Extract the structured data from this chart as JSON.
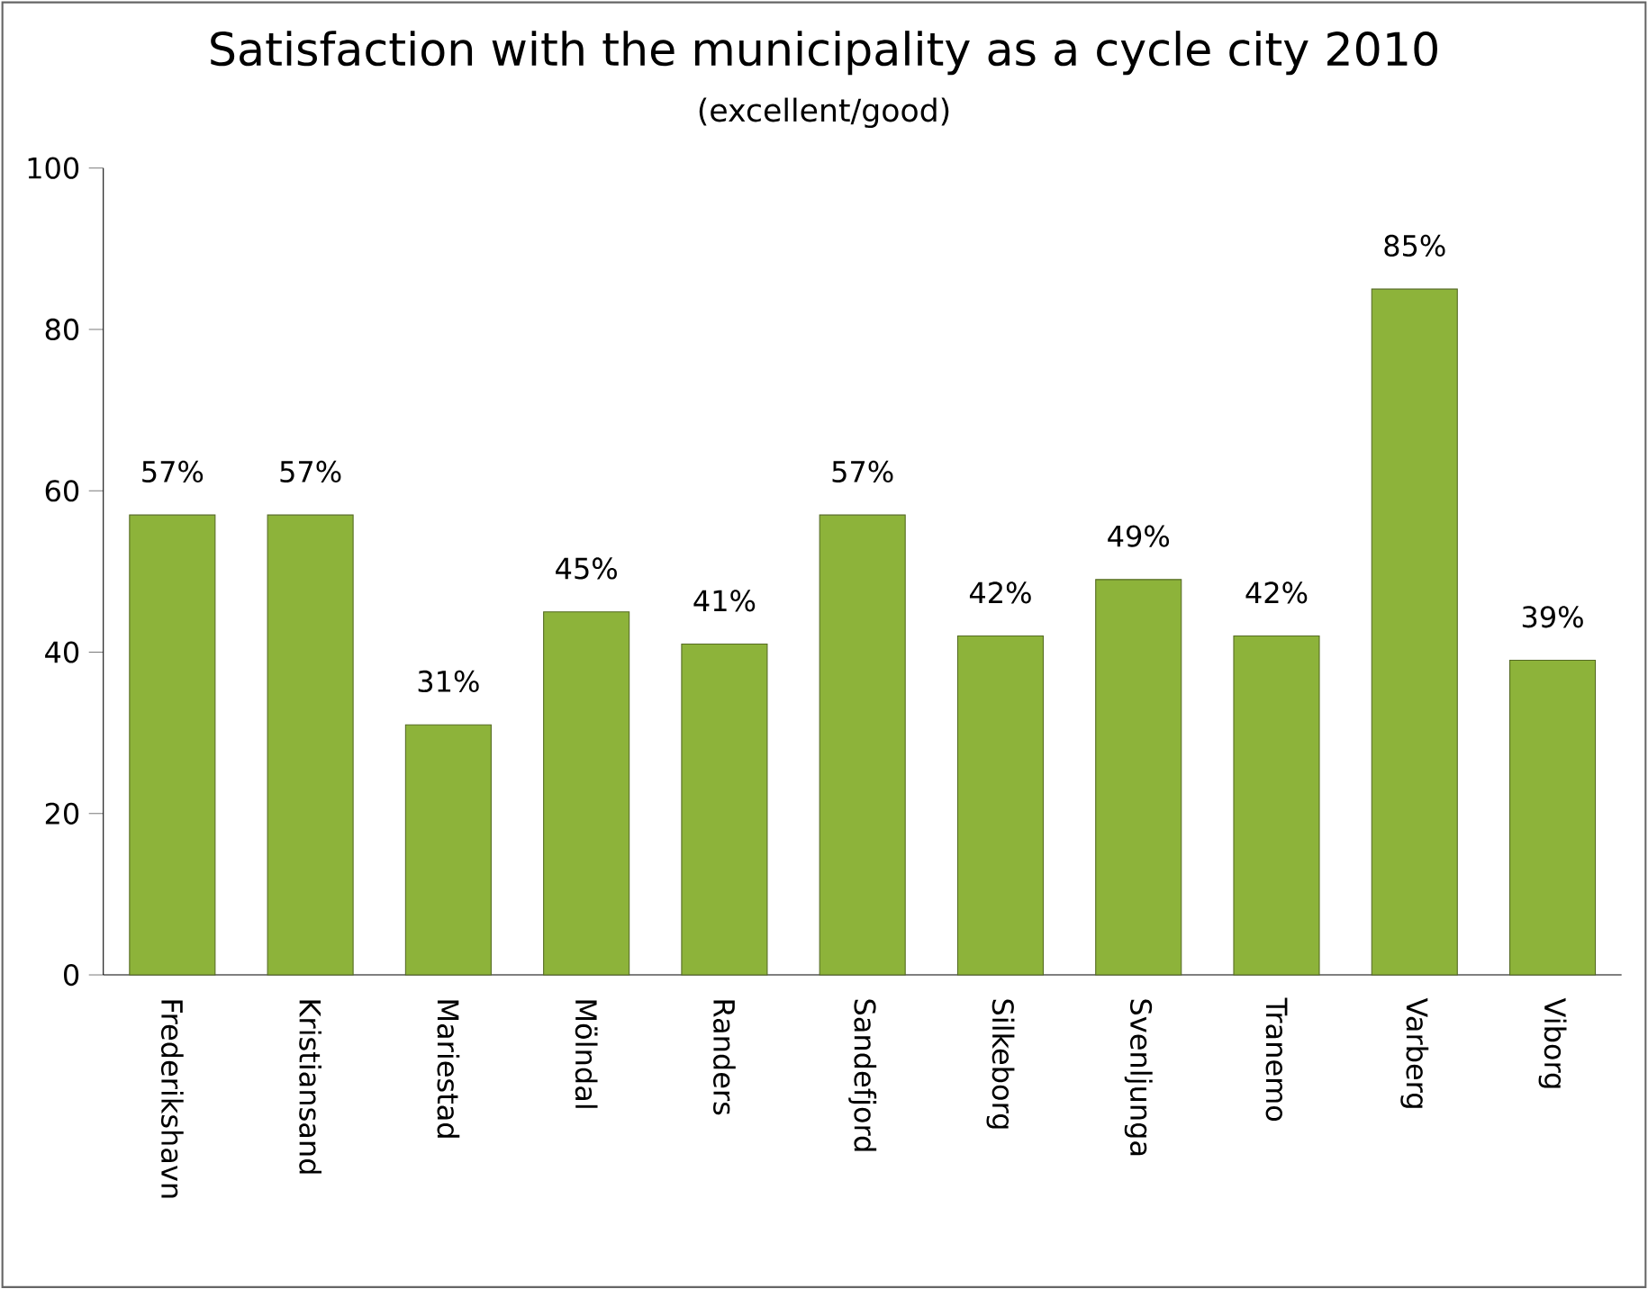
{
  "chart_data": {
    "type": "bar",
    "title": "Satisfaction with the municipality as a cycle city 2010",
    "subtitle": "(excellent/good)",
    "categories": [
      "Frederikshavn",
      "Kristiansand",
      "Mariestad",
      "Mölndal",
      "Randers",
      "Sandefjord",
      "Silkeborg",
      "Svenljunga",
      "Tranemo",
      "Varberg",
      "Viborg"
    ],
    "values": [
      57,
      57,
      31,
      45,
      41,
      57,
      42,
      49,
      42,
      85,
      39
    ],
    "value_labels": [
      "57%",
      "57%",
      "31%",
      "45%",
      "41%",
      "57%",
      "42%",
      "49%",
      "42%",
      "85%",
      "39%"
    ],
    "color": "#8db33a",
    "ylim": [
      0,
      100
    ],
    "yticks": [
      0,
      20,
      40,
      60,
      80,
      100
    ],
    "grid": false
  }
}
